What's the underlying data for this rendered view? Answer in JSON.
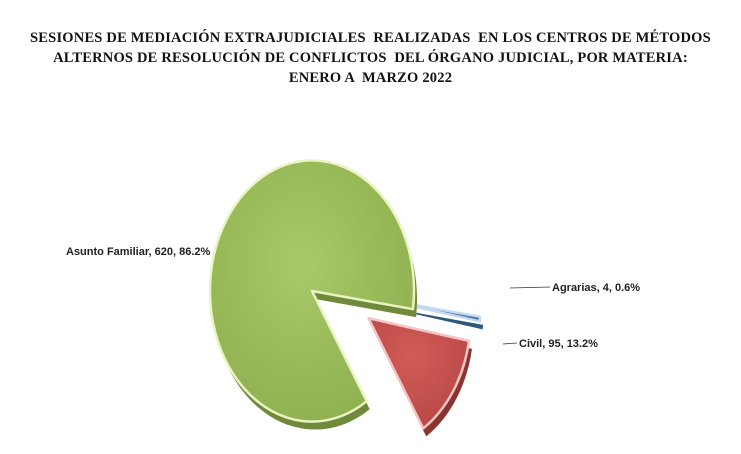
{
  "chart_data": {
    "type": "pie",
    "title_lines": [
      "SESIONES DE MEDIACIÓN EXTRAJUDICIALES  REALIZADAS  EN LOS CENTROS DE MÉTODOS",
      "ALTERNOS DE RESOLUCIÓN DE CONFLICTOS  DEL ÓRGANO JUDICIAL, POR MATERIA:",
      "ENERO A  MARZO 2022"
    ],
    "slices": [
      {
        "category": "Agrarias",
        "value": 4,
        "percent": "0.6%",
        "label": "Agrarias, 4, 0.6%",
        "color": "#4f81bd",
        "exploded": true
      },
      {
        "category": "Civil",
        "value": 95,
        "percent": "13.2%",
        "label": "Civil, 95, 13.2%",
        "color": "#c0504d",
        "exploded": true
      },
      {
        "category": "Asunto Familiar",
        "value": 620,
        "percent": "86.2%",
        "label": "Asunto Familiar, 620, 86.2%",
        "color": "#9bbb59",
        "exploded": false
      }
    ]
  }
}
